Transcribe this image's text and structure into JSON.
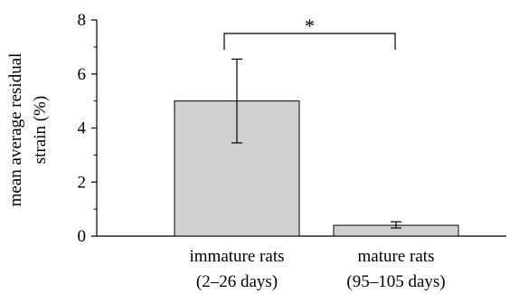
{
  "chart_data": {
    "type": "bar",
    "categories": [
      [
        "immature rats",
        "(2–26 days)"
      ],
      [
        "mature rats",
        "(95–105 days)"
      ]
    ],
    "values": [
      5.0,
      0.4
    ],
    "error_bars": [
      {
        "lower": 3.45,
        "upper": 6.55
      },
      {
        "lower": 0.3,
        "upper": 0.53
      }
    ],
    "ylabel": [
      "mean average residual",
      "strain (%)"
    ],
    "ylim": [
      0,
      8
    ],
    "yticks": [
      0,
      2,
      4,
      6,
      8
    ],
    "bar_color": "#d0d0d0",
    "significance": {
      "label": "*",
      "between": [
        0,
        1
      ]
    },
    "grid": false,
    "legend": "none"
  }
}
